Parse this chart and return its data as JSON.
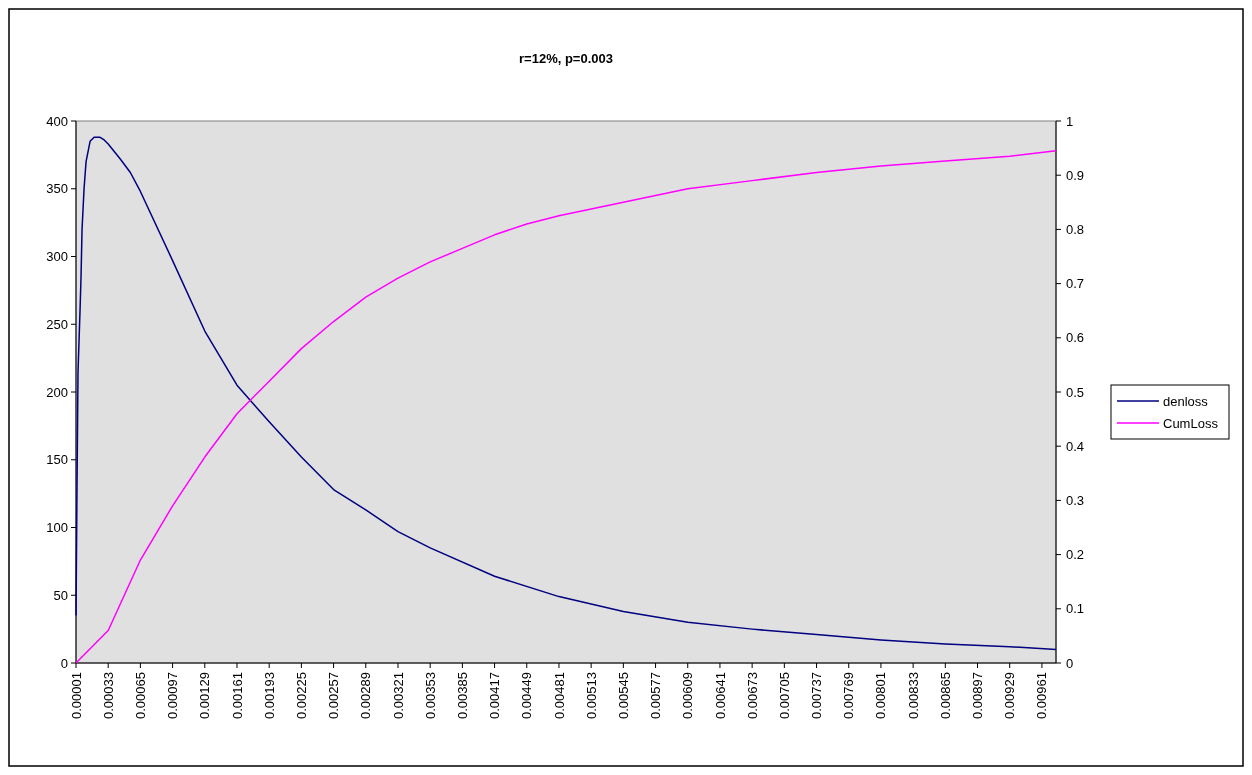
{
  "chart_data": {
    "type": "line",
    "title": "r=12%, p=0.003",
    "xlim": [
      1e-05,
      0.00975
    ],
    "xticks": [
      {
        "value": 1e-05,
        "label": "0.00001"
      },
      0.00033,
      0.00065,
      0.00097,
      0.00129,
      0.00161,
      0.00193,
      0.00225,
      0.00257,
      0.00289,
      0.00321,
      0.00353,
      0.00385,
      0.00417,
      0.00449,
      0.00481,
      0.00513,
      0.00545,
      0.00577,
      0.00609,
      0.00641,
      0.00673,
      0.00705,
      0.00737,
      0.00769,
      0.00801,
      0.00833,
      0.00865,
      0.00897,
      0.00929,
      0.00961
    ],
    "ylim": [
      0,
      400
    ],
    "yticks": [
      0,
      50,
      100,
      150,
      200,
      250,
      300,
      350,
      400
    ],
    "y2lim": [
      0,
      1
    ],
    "y2ticks": [
      0,
      0.1,
      0.2,
      0.3,
      0.4,
      0.5,
      0.6,
      0.7,
      0.8,
      0.9,
      1
    ],
    "grid": false,
    "legend": "right",
    "series": [
      {
        "name": "denloss",
        "color": "#000080",
        "x": [
          1e-05,
          2e-05,
          3e-05,
          5e-05,
          6e-05,
          7e-05,
          9e-05,
          0.00011,
          0.00015,
          0.00019,
          0.00025,
          0.00029,
          0.00033,
          0.00045,
          0.00055,
          0.00065,
          0.00097,
          0.00129,
          0.00161,
          0.00193,
          0.00225,
          0.00257,
          0.00289,
          0.00321,
          0.00353,
          0.00417,
          0.00481,
          0.00545,
          0.00609,
          0.00673,
          0.00737,
          0.00801,
          0.00865,
          0.00929,
          0.00975
        ],
        "values": [
          35,
          130,
          215,
          260,
          285,
          320,
          350,
          370,
          385,
          388,
          388,
          386,
          383,
          372,
          362,
          348,
          297,
          245,
          205,
          178,
          152,
          128,
          113,
          97,
          85,
          64,
          49,
          38,
          30,
          25,
          21,
          17,
          14,
          12,
          10
        ]
      },
      {
        "name": "CumLoss",
        "color": "#ff00ff",
        "axis": "y2",
        "x": [
          1e-05,
          0.00033,
          0.00065,
          0.00097,
          0.00129,
          0.00161,
          0.00193,
          0.00225,
          0.00257,
          0.00289,
          0.00321,
          0.00353,
          0.00385,
          0.00417,
          0.00449,
          0.00481,
          0.00545,
          0.00609,
          0.00673,
          0.00737,
          0.00801,
          0.00865,
          0.00929,
          0.00975
        ],
        "values": [
          0,
          0.06,
          0.19,
          0.29,
          0.38,
          0.46,
          0.52,
          0.58,
          0.63,
          0.675,
          0.71,
          0.74,
          0.765,
          0.79,
          0.81,
          0.825,
          0.85,
          0.875,
          0.89,
          0.905,
          0.917,
          0.926,
          0.935,
          0.945
        ]
      }
    ]
  }
}
